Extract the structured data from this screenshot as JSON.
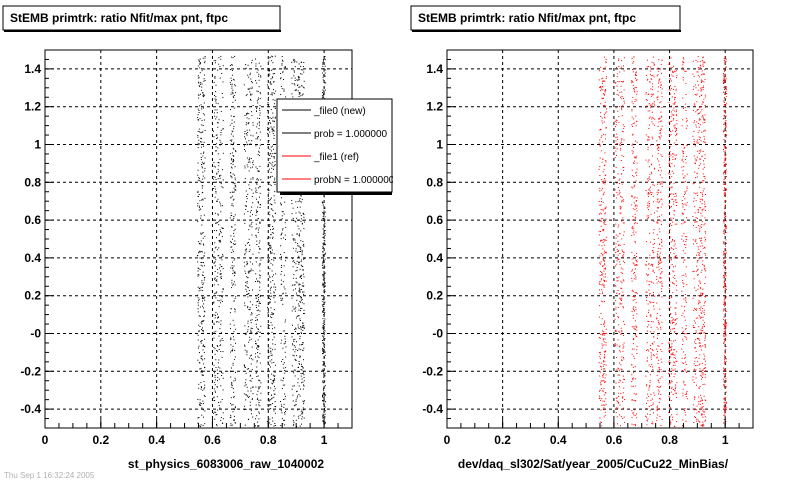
{
  "footer": {
    "text": "Thu Sep 1 16:32:24 2005"
  },
  "legend": {
    "entries": [
      {
        "label": "_file0 (new)",
        "color": "#000000"
      },
      {
        "label": "prob = 1.000000",
        "color": "#000000"
      },
      {
        "label": "_file1 (ref)",
        "color": "#ff0000"
      },
      {
        "label": "probN = 1.000000",
        "color": "#ff0000"
      }
    ]
  },
  "chart_data": [
    {
      "type": "scatter",
      "title": "StEMB primtrk: ratio Nfit/max pnt, ftpc",
      "xlabel": "st_physics_6083006_raw_1040002",
      "ylabel": "",
      "xlim": [
        0,
        1.1
      ],
      "ylim": [
        -0.5,
        1.5
      ],
      "x_ticks": [
        "0",
        "0.2",
        "0.4",
        "0.6",
        "0.8",
        "1"
      ],
      "y_ticks": [
        "-0.4",
        "-0.2",
        "-0",
        "0.2",
        "0.4",
        "0.6",
        "0.8",
        "1",
        "1.2",
        "1.4"
      ],
      "grid": true,
      "legend_position": "top-right",
      "marker_color": "#000000",
      "series": [
        {
          "bands": [
            {
              "x": [
                0.545,
                0.572
              ],
              "density": 0.85
            },
            {
              "x": [
                0.602,
                0.637
              ],
              "density": 0.75
            },
            {
              "x": [
                0.662,
                0.682
              ],
              "density": 0.6
            },
            {
              "x": [
                0.712,
                0.745
              ],
              "density": 0.7
            },
            {
              "x": [
                0.752,
                0.772
              ],
              "density": 0.6
            },
            {
              "x": [
                0.795,
                0.825
              ],
              "density": 0.85
            },
            {
              "x": [
                0.842,
                0.862
              ],
              "density": 0.45
            },
            {
              "x": [
                0.882,
                0.905
              ],
              "density": 0.5
            },
            {
              "x": [
                0.905,
                0.928
              ],
              "density": 0.8
            },
            {
              "x": [
                0.992,
                1.003
              ],
              "density": 0.9
            }
          ]
        }
      ]
    },
    {
      "type": "scatter",
      "title": "StEMB primtrk: ratio Nfit/max pnt, ftpc",
      "xlabel": "dev/daq_sl302/Sat/year_2005/CuCu22_MinBias/",
      "ylabel": "",
      "xlim": [
        0,
        1.1
      ],
      "ylim": [
        -0.5,
        1.5
      ],
      "x_ticks": [
        "0",
        "0.2",
        "0.4",
        "0.6",
        "0.8",
        "1"
      ],
      "y_ticks": [
        "-0.4",
        "-0.2",
        "-0",
        "0.2",
        "0.4",
        "0.6",
        "0.8",
        "1",
        "1.2",
        "1.4"
      ],
      "grid": true,
      "legend_position": "",
      "marker_color": "#ff0000",
      "series": [
        {
          "bands": [
            {
              "x": [
                0.545,
                0.572
              ],
              "density": 0.85
            },
            {
              "x": [
                0.602,
                0.637
              ],
              "density": 0.75
            },
            {
              "x": [
                0.662,
                0.682
              ],
              "density": 0.6
            },
            {
              "x": [
                0.712,
                0.745
              ],
              "density": 0.7
            },
            {
              "x": [
                0.752,
                0.772
              ],
              "density": 0.6
            },
            {
              "x": [
                0.795,
                0.825
              ],
              "density": 0.85
            },
            {
              "x": [
                0.842,
                0.862
              ],
              "density": 0.45
            },
            {
              "x": [
                0.882,
                0.905
              ],
              "density": 0.5
            },
            {
              "x": [
                0.905,
                0.928
              ],
              "density": 0.8
            },
            {
              "x": [
                0.992,
                1.003
              ],
              "density": 0.9
            }
          ]
        }
      ]
    }
  ]
}
